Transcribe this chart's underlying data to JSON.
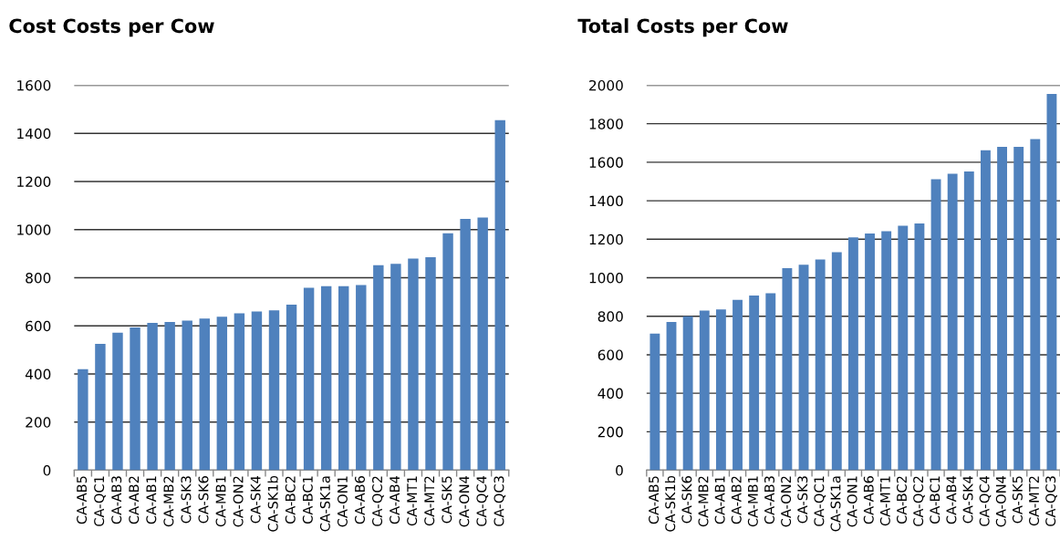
{
  "chart_data": [
    {
      "type": "bar",
      "title": "Cost Costs per Cow",
      "color": "#4f81bd",
      "categories": [
        "CA-AB5",
        "CA-QC1",
        "CA-AB3",
        "CA-AB2",
        "CA-AB1",
        "CA-MB2",
        "CA-SK3",
        "CA-SK6",
        "CA-MB1",
        "CA-ON2",
        "CA-SK4",
        "CA-SK1b",
        "CA-BC2",
        "CA-BC1",
        "CA-SK1a",
        "CA-ON1",
        "CA-AB6",
        "CA-QC2",
        "CA-AB4",
        "CA-MT1",
        "CA-MT2",
        "CA-SK5",
        "CA-ON4",
        "CA-QC4",
        "CA-QC3"
      ],
      "values": [
        420,
        525,
        572,
        593,
        612,
        616,
        622,
        630,
        638,
        652,
        660,
        665,
        688,
        758,
        765,
        765,
        770,
        852,
        858,
        880,
        885,
        985,
        1045,
        1050,
        1455
      ],
      "ylim": [
        0,
        1600
      ],
      "yticks": [
        0,
        200,
        400,
        600,
        800,
        1000,
        1200,
        1400,
        1600
      ],
      "grid": "y"
    },
    {
      "type": "bar",
      "title": "Total Costs per Cow",
      "color": "#4f81bd",
      "categories": [
        "CA-AB5",
        "CA-SK1b",
        "CA-SK6",
        "CA-MB2",
        "CA-AB1",
        "CA-AB2",
        "CA-MB1",
        "CA-AB3",
        "CA-ON2",
        "CA-SK3",
        "CA-QC1",
        "CA-SK1a",
        "CA-ON1",
        "CA-AB6",
        "CA-MT1",
        "CA-BC2",
        "CA-QC2",
        "CA-BC1",
        "CA-AB4",
        "CA-SK4",
        "CA-QC4",
        "CA-ON4",
        "CA-SK5",
        "CA-MT2",
        "CA-QC3"
      ],
      "values": [
        710,
        770,
        800,
        830,
        835,
        885,
        908,
        920,
        1050,
        1068,
        1095,
        1133,
        1210,
        1230,
        1242,
        1270,
        1282,
        1512,
        1540,
        1552,
        1662,
        1680,
        1680,
        1720,
        1955
      ],
      "ylim": [
        0,
        2000
      ],
      "yticks": [
        0,
        200,
        400,
        600,
        800,
        1000,
        1200,
        1400,
        1600,
        1800,
        2000
      ],
      "grid": "y"
    }
  ]
}
